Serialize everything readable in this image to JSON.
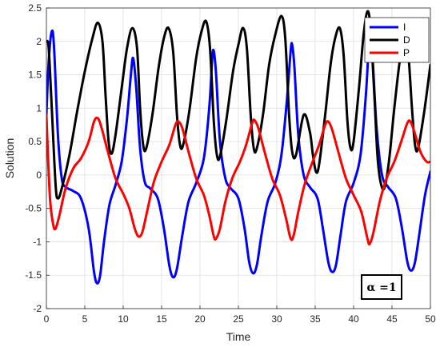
{
  "chart_data": {
    "type": "line",
    "title": "",
    "xlabel": "Time",
    "ylabel": "Solution",
    "xlim": [
      0,
      50
    ],
    "ylim": [
      -2,
      2.5
    ],
    "xticks": [
      0,
      5,
      10,
      15,
      20,
      25,
      30,
      35,
      40,
      45,
      50
    ],
    "yticks": [
      -2,
      -1.5,
      -1,
      -0.5,
      0,
      0.5,
      1,
      1.5,
      2,
      2.5
    ],
    "grid": true,
    "legend_position": "top-right",
    "annotation": "α =1",
    "series": [
      {
        "name": "I",
        "color": "#0000ff",
        "points": [
          [
            0,
            0.9
          ],
          [
            0.3,
            1.7
          ],
          [
            0.7,
            2.15
          ],
          [
            1.0,
            1.9
          ],
          [
            1.5,
            0.6
          ],
          [
            2.0,
            -0.05
          ],
          [
            2.5,
            -0.18
          ],
          [
            3.5,
            -0.24
          ],
          [
            4.5,
            -0.35
          ],
          [
            5.5,
            -0.8
          ],
          [
            6.2,
            -1.45
          ],
          [
            6.6,
            -1.62
          ],
          [
            7.0,
            -1.5
          ],
          [
            7.5,
            -1.0
          ],
          [
            8.2,
            -0.45
          ],
          [
            9.0,
            -0.15
          ],
          [
            9.8,
            0.2
          ],
          [
            10.5,
            0.85
          ],
          [
            11.0,
            1.5
          ],
          [
            11.3,
            1.75
          ],
          [
            11.7,
            1.3
          ],
          [
            12.2,
            0.4
          ],
          [
            12.8,
            -0.1
          ],
          [
            13.5,
            -0.2
          ],
          [
            14.5,
            -0.35
          ],
          [
            15.3,
            -0.8
          ],
          [
            16.0,
            -1.35
          ],
          [
            16.5,
            -1.53
          ],
          [
            17.0,
            -1.4
          ],
          [
            17.7,
            -0.9
          ],
          [
            18.5,
            -0.4
          ],
          [
            19.5,
            -0.12
          ],
          [
            20.5,
            0.25
          ],
          [
            21.2,
            1.0
          ],
          [
            21.6,
            1.75
          ],
          [
            21.8,
            1.85
          ],
          [
            22.1,
            1.5
          ],
          [
            22.6,
            0.5
          ],
          [
            23.3,
            -0.05
          ],
          [
            24.0,
            -0.2
          ],
          [
            25.0,
            -0.35
          ],
          [
            25.8,
            -0.8
          ],
          [
            26.4,
            -1.3
          ],
          [
            26.9,
            -1.47
          ],
          [
            27.4,
            -1.35
          ],
          [
            28.0,
            -0.9
          ],
          [
            28.8,
            -0.4
          ],
          [
            29.8,
            -0.12
          ],
          [
            30.6,
            0.3
          ],
          [
            31.3,
            1.1
          ],
          [
            31.8,
            1.85
          ],
          [
            32.0,
            1.95
          ],
          [
            32.3,
            1.6
          ],
          [
            32.8,
            0.6
          ],
          [
            33.5,
            0.0
          ],
          [
            34.3,
            -0.18
          ],
          [
            35.3,
            -0.35
          ],
          [
            36.0,
            -0.8
          ],
          [
            36.7,
            -1.3
          ],
          [
            37.2,
            -1.45
          ],
          [
            37.7,
            -1.35
          ],
          [
            38.3,
            -0.9
          ],
          [
            39.0,
            -0.4
          ],
          [
            40.0,
            -0.12
          ],
          [
            40.9,
            0.3
          ],
          [
            41.6,
            1.2
          ],
          [
            42.0,
            2.0
          ],
          [
            42.2,
            2.12
          ],
          [
            42.5,
            1.7
          ],
          [
            43.0,
            0.7
          ],
          [
            43.7,
            0.0
          ],
          [
            44.5,
            -0.18
          ],
          [
            45.5,
            -0.35
          ],
          [
            46.3,
            -0.8
          ],
          [
            47.0,
            -1.3
          ],
          [
            47.5,
            -1.43
          ],
          [
            48.0,
            -1.3
          ],
          [
            48.6,
            -0.85
          ],
          [
            49.3,
            -0.3
          ],
          [
            50.0,
            0.05
          ]
        ]
      },
      {
        "name": "D",
        "color": "#000000",
        "points": [
          [
            0,
            2.0
          ],
          [
            0.3,
            1.9
          ],
          [
            0.7,
            1.0
          ],
          [
            1.2,
            -0.15
          ],
          [
            1.5,
            -0.35
          ],
          [
            2.0,
            -0.2
          ],
          [
            3.0,
            0.3
          ],
          [
            4.0,
            0.95
          ],
          [
            5.0,
            1.55
          ],
          [
            6.0,
            2.05
          ],
          [
            6.7,
            2.28
          ],
          [
            7.3,
            2.0
          ],
          [
            7.7,
            1.2
          ],
          [
            8.1,
            0.5
          ],
          [
            8.5,
            0.32
          ],
          [
            9.0,
            0.6
          ],
          [
            9.8,
            1.3
          ],
          [
            10.5,
            1.9
          ],
          [
            11.2,
            2.2
          ],
          [
            11.8,
            1.9
          ],
          [
            12.2,
            1.0
          ],
          [
            12.6,
            0.45
          ],
          [
            13.0,
            0.4
          ],
          [
            13.8,
            0.9
          ],
          [
            14.6,
            1.6
          ],
          [
            15.3,
            2.05
          ],
          [
            15.9,
            2.2
          ],
          [
            16.5,
            1.85
          ],
          [
            17.0,
            0.9
          ],
          [
            17.4,
            0.45
          ],
          [
            17.8,
            0.45
          ],
          [
            18.6,
            0.95
          ],
          [
            19.5,
            1.75
          ],
          [
            20.2,
            2.15
          ],
          [
            20.8,
            2.3
          ],
          [
            21.3,
            1.9
          ],
          [
            21.8,
            0.8
          ],
          [
            22.2,
            0.3
          ],
          [
            22.6,
            0.28
          ],
          [
            23.4,
            0.8
          ],
          [
            24.3,
            1.55
          ],
          [
            25.0,
            1.95
          ],
          [
            25.6,
            2.2
          ],
          [
            26.1,
            1.9
          ],
          [
            26.6,
            0.9
          ],
          [
            27.0,
            0.4
          ],
          [
            27.4,
            0.4
          ],
          [
            28.2,
            0.9
          ],
          [
            29.0,
            1.65
          ],
          [
            29.8,
            2.1
          ],
          [
            30.6,
            2.38
          ],
          [
            31.1,
            2.05
          ],
          [
            31.6,
            0.9
          ],
          [
            32.0,
            0.35
          ],
          [
            32.5,
            0.3
          ],
          [
            33.5,
            0.9
          ],
          [
            34.3,
            0.65
          ],
          [
            34.7,
            0.3
          ],
          [
            35.1,
            0.05
          ],
          [
            35.5,
            0.15
          ],
          [
            36.3,
            0.9
          ],
          [
            37.0,
            1.65
          ],
          [
            37.6,
            2.05
          ],
          [
            38.2,
            2.2
          ],
          [
            38.7,
            1.8
          ],
          [
            39.2,
            0.8
          ],
          [
            39.6,
            0.4
          ],
          [
            40.0,
            0.5
          ],
          [
            40.7,
            1.3
          ],
          [
            41.3,
            2.1
          ],
          [
            41.8,
            2.45
          ],
          [
            42.2,
            2.2
          ],
          [
            42.7,
            1.2
          ],
          [
            43.1,
            0.3
          ],
          [
            43.5,
            -0.1
          ],
          [
            44.0,
            -0.2
          ],
          [
            44.6,
            0.2
          ],
          [
            45.3,
            1.0
          ],
          [
            46.0,
            1.7
          ],
          [
            46.6,
            2.08
          ],
          [
            47.1,
            1.85
          ],
          [
            47.6,
            1.0
          ],
          [
            48.0,
            0.45
          ],
          [
            48.4,
            0.4
          ],
          [
            49.2,
            0.95
          ],
          [
            50.0,
            1.65
          ]
        ]
      },
      {
        "name": "P",
        "color": "#ff0000",
        "points": [
          [
            0,
            0.9
          ],
          [
            0.2,
            0.3
          ],
          [
            0.5,
            -0.4
          ],
          [
            0.9,
            -0.75
          ],
          [
            1.2,
            -0.8
          ],
          [
            1.7,
            -0.6
          ],
          [
            2.5,
            -0.2
          ],
          [
            3.5,
            0.1
          ],
          [
            4.5,
            0.25
          ],
          [
            5.5,
            0.5
          ],
          [
            6.2,
            0.8
          ],
          [
            6.7,
            0.85
          ],
          [
            7.2,
            0.7
          ],
          [
            8.0,
            0.35
          ],
          [
            9.0,
            -0.05
          ],
          [
            10.0,
            -0.28
          ],
          [
            10.8,
            -0.5
          ],
          [
            11.5,
            -0.8
          ],
          [
            12.0,
            -0.92
          ],
          [
            12.5,
            -0.85
          ],
          [
            13.2,
            -0.5
          ],
          [
            14.0,
            -0.1
          ],
          [
            15.0,
            0.2
          ],
          [
            16.0,
            0.45
          ],
          [
            16.8,
            0.75
          ],
          [
            17.2,
            0.8
          ],
          [
            17.7,
            0.7
          ],
          [
            18.5,
            0.35
          ],
          [
            19.5,
            -0.05
          ],
          [
            20.5,
            -0.3
          ],
          [
            21.2,
            -0.6
          ],
          [
            21.8,
            -0.92
          ],
          [
            22.1,
            -0.95
          ],
          [
            22.6,
            -0.8
          ],
          [
            23.3,
            -0.4
          ],
          [
            24.2,
            -0.05
          ],
          [
            25.2,
            0.2
          ],
          [
            26.0,
            0.45
          ],
          [
            26.8,
            0.78
          ],
          [
            27.1,
            0.82
          ],
          [
            27.6,
            0.7
          ],
          [
            28.4,
            0.35
          ],
          [
            29.4,
            -0.05
          ],
          [
            30.4,
            -0.3
          ],
          [
            31.2,
            -0.65
          ],
          [
            31.8,
            -0.95
          ],
          [
            32.2,
            -0.9
          ],
          [
            32.8,
            -0.55
          ],
          [
            33.6,
            -0.15
          ],
          [
            34.5,
            0.15
          ],
          [
            35.5,
            0.45
          ],
          [
            36.3,
            0.75
          ],
          [
            36.7,
            0.8
          ],
          [
            37.2,
            0.68
          ],
          [
            38.0,
            0.35
          ],
          [
            39.0,
            -0.05
          ],
          [
            40.0,
            -0.3
          ],
          [
            41.0,
            -0.55
          ],
          [
            41.8,
            -0.95
          ],
          [
            42.1,
            -1.03
          ],
          [
            42.6,
            -0.85
          ],
          [
            43.4,
            -0.4
          ],
          [
            44.3,
            -0.05
          ],
          [
            45.3,
            0.2
          ],
          [
            46.2,
            0.5
          ],
          [
            47.0,
            0.78
          ],
          [
            47.4,
            0.8
          ],
          [
            47.9,
            0.65
          ],
          [
            48.7,
            0.35
          ],
          [
            49.5,
            0.2
          ],
          [
            50.0,
            0.2
          ]
        ]
      }
    ]
  }
}
